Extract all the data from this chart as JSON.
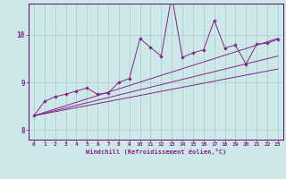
{
  "xlabel": "Windchill (Refroidissement éolien,°C)",
  "bg_color": "#cce8e8",
  "grid_color": "#aacccc",
  "line_color": "#882288",
  "spine_color": "#660066",
  "xlim": [
    -0.5,
    23.5
  ],
  "ylim": [
    7.8,
    10.65
  ],
  "yticks": [
    8,
    9,
    10
  ],
  "xticks": [
    0,
    1,
    2,
    3,
    4,
    5,
    6,
    7,
    8,
    9,
    10,
    11,
    12,
    13,
    14,
    15,
    16,
    17,
    18,
    19,
    20,
    21,
    22,
    23
  ],
  "series1_x": [
    0,
    1,
    2,
    3,
    4,
    5,
    6,
    7,
    8,
    9,
    10,
    11,
    12,
    13,
    14,
    15,
    16,
    17,
    18,
    19,
    20,
    21,
    22,
    23
  ],
  "series1_y": [
    8.3,
    8.6,
    8.7,
    8.75,
    8.82,
    8.88,
    8.75,
    8.78,
    9.0,
    9.08,
    9.92,
    9.73,
    9.55,
    10.82,
    9.52,
    9.62,
    9.68,
    10.3,
    9.72,
    9.78,
    9.38,
    9.8,
    9.82,
    9.9
  ],
  "trend1_x": [
    0,
    23
  ],
  "trend1_y": [
    8.3,
    9.92
  ],
  "trend2_x": [
    0,
    23
  ],
  "trend2_y": [
    8.3,
    9.55
  ],
  "trend3_x": [
    0,
    23
  ],
  "trend3_y": [
    8.3,
    9.28
  ]
}
